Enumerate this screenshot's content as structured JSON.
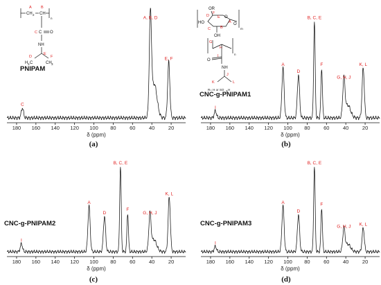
{
  "chart_data": [
    {
      "type": "line",
      "panel": "(a)",
      "sample": "PNIPAM",
      "xlabel": "δ (ppm)",
      "xticks": [
        180,
        160,
        140,
        120,
        100,
        80,
        60,
        40,
        20
      ],
      "xlim": [
        190,
        5
      ],
      "ylim": [
        0,
        1
      ],
      "x_reversed": true,
      "peaks": [
        {
          "label": "C",
          "x": 174,
          "y": 0.1
        },
        {
          "label": "A, B, D",
          "x": 41.5,
          "y": 0.97
        },
        {
          "label": "E, F",
          "x": 22.5,
          "y": 0.56
        }
      ]
    },
    {
      "type": "line",
      "panel": "(b)",
      "sample": "CNC-g-PNIPAM1",
      "xlabel": "δ (ppm)",
      "xticks": [
        180,
        160,
        140,
        120,
        100,
        80,
        60,
        40,
        20
      ],
      "xlim": [
        190,
        5
      ],
      "ylim": [
        0,
        1
      ],
      "x_reversed": true,
      "peaks": [
        {
          "label": "I",
          "x": 175,
          "y": 0.07
        },
        {
          "label": "A",
          "x": 105,
          "y": 0.5
        },
        {
          "label": "D",
          "x": 89,
          "y": 0.43
        },
        {
          "label": "B, C, E",
          "x": 72.5,
          "y": 0.97
        },
        {
          "label": "F",
          "x": 65,
          "y": 0.5
        },
        {
          "label": "G, H, J",
          "x": 42,
          "y": 0.37
        },
        {
          "label": "K, L",
          "x": 22,
          "y": 0.5
        }
      ]
    },
    {
      "type": "line",
      "panel": "(c)",
      "sample": "CNC-g-PNIPAM2",
      "xlabel": "δ (ppm)",
      "xticks": [
        180,
        160,
        140,
        120,
        100,
        80,
        60,
        40,
        20
      ],
      "xlim": [
        190,
        5
      ],
      "ylim": [
        0,
        1
      ],
      "x_reversed": true,
      "peaks": [
        {
          "label": "I",
          "x": 175,
          "y": 0.09
        },
        {
          "label": "A",
          "x": 105,
          "y": 0.52
        },
        {
          "label": "D",
          "x": 89,
          "y": 0.4
        },
        {
          "label": "B, C, E",
          "x": 72.5,
          "y": 0.97
        },
        {
          "label": "F",
          "x": 65,
          "y": 0.44
        },
        {
          "label": "G, H, J",
          "x": 42,
          "y": 0.4
        },
        {
          "label": "K, L",
          "x": 22,
          "y": 0.62
        }
      ]
    },
    {
      "type": "line",
      "panel": "(d)",
      "sample": "CNC-g-PNIPAM3",
      "xlabel": "δ (ppm)",
      "xticks": [
        180,
        160,
        140,
        120,
        100,
        80,
        60,
        40,
        20
      ],
      "xlim": [
        190,
        5
      ],
      "ylim": [
        0,
        1
      ],
      "x_reversed": true,
      "peaks": [
        {
          "label": "I",
          "x": 175,
          "y": 0.06
        },
        {
          "label": "A",
          "x": 105,
          "y": 0.52
        },
        {
          "label": "D",
          "x": 89,
          "y": 0.42
        },
        {
          "label": "B, C, E",
          "x": 72.5,
          "y": 0.97
        },
        {
          "label": "F",
          "x": 65,
          "y": 0.5
        },
        {
          "label": "G, H, J",
          "x": 42,
          "y": 0.25
        },
        {
          "label": "K, L",
          "x": 22,
          "y": 0.27
        }
      ]
    }
  ],
  "structures": {
    "pnipam": {
      "backbone_left": "CH",
      "backbone_sub": "2",
      "backbone_right": "CH",
      "repeat": "n",
      "carbonyl_c": "C",
      "carbonyl_o": "O",
      "amide": "NH",
      "methine": "CH",
      "methyl_left": "H",
      "methyl_left_sub": "3",
      "methyl_left_c": "C",
      "methyl_right": "CH",
      "methyl_right_sub": "3",
      "labels": {
        "a": "A",
        "b": "B",
        "c": "C",
        "d": "D",
        "e": "E",
        "f": "F"
      }
    },
    "cnc": {
      "or": "OR",
      "ho": "HO",
      "oh": "OH",
      "ring_o": "O",
      "bridge_o": "O",
      "m": "m",
      "n": "n",
      "amide": "NH",
      "carbonyl_o": "O",
      "r_note": "R= H or SO",
      "r_note_sub": "3",
      "r_note_end": "H",
      "labels": {
        "a": "A",
        "b": "B",
        "c": "C",
        "d": "D",
        "e": "E",
        "f": "F",
        "g": "G",
        "h": "H",
        "i": "I",
        "j": "J",
        "k": "K",
        "l": "L"
      }
    }
  },
  "colors": {
    "peak_label": "#e02020",
    "line": "#111111"
  }
}
